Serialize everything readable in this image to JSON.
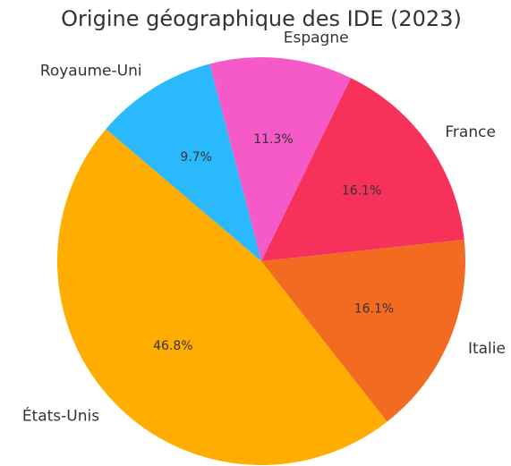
{
  "chart_data": {
    "type": "pie",
    "title": "Origine géographique des IDE (2023)",
    "categories": [
      "États-Unis",
      "Italie",
      "France",
      "Espagne",
      "Royaume-Uni"
    ],
    "values": [
      46.8,
      16.1,
      16.1,
      11.3,
      9.7
    ],
    "value_labels": [
      "46.8%",
      "16.1%",
      "16.1%",
      "11.3%",
      "9.7%"
    ],
    "colors": [
      "#ffad00",
      "#f26b21",
      "#f7325a",
      "#f659c8",
      "#2ab9fc"
    ]
  }
}
